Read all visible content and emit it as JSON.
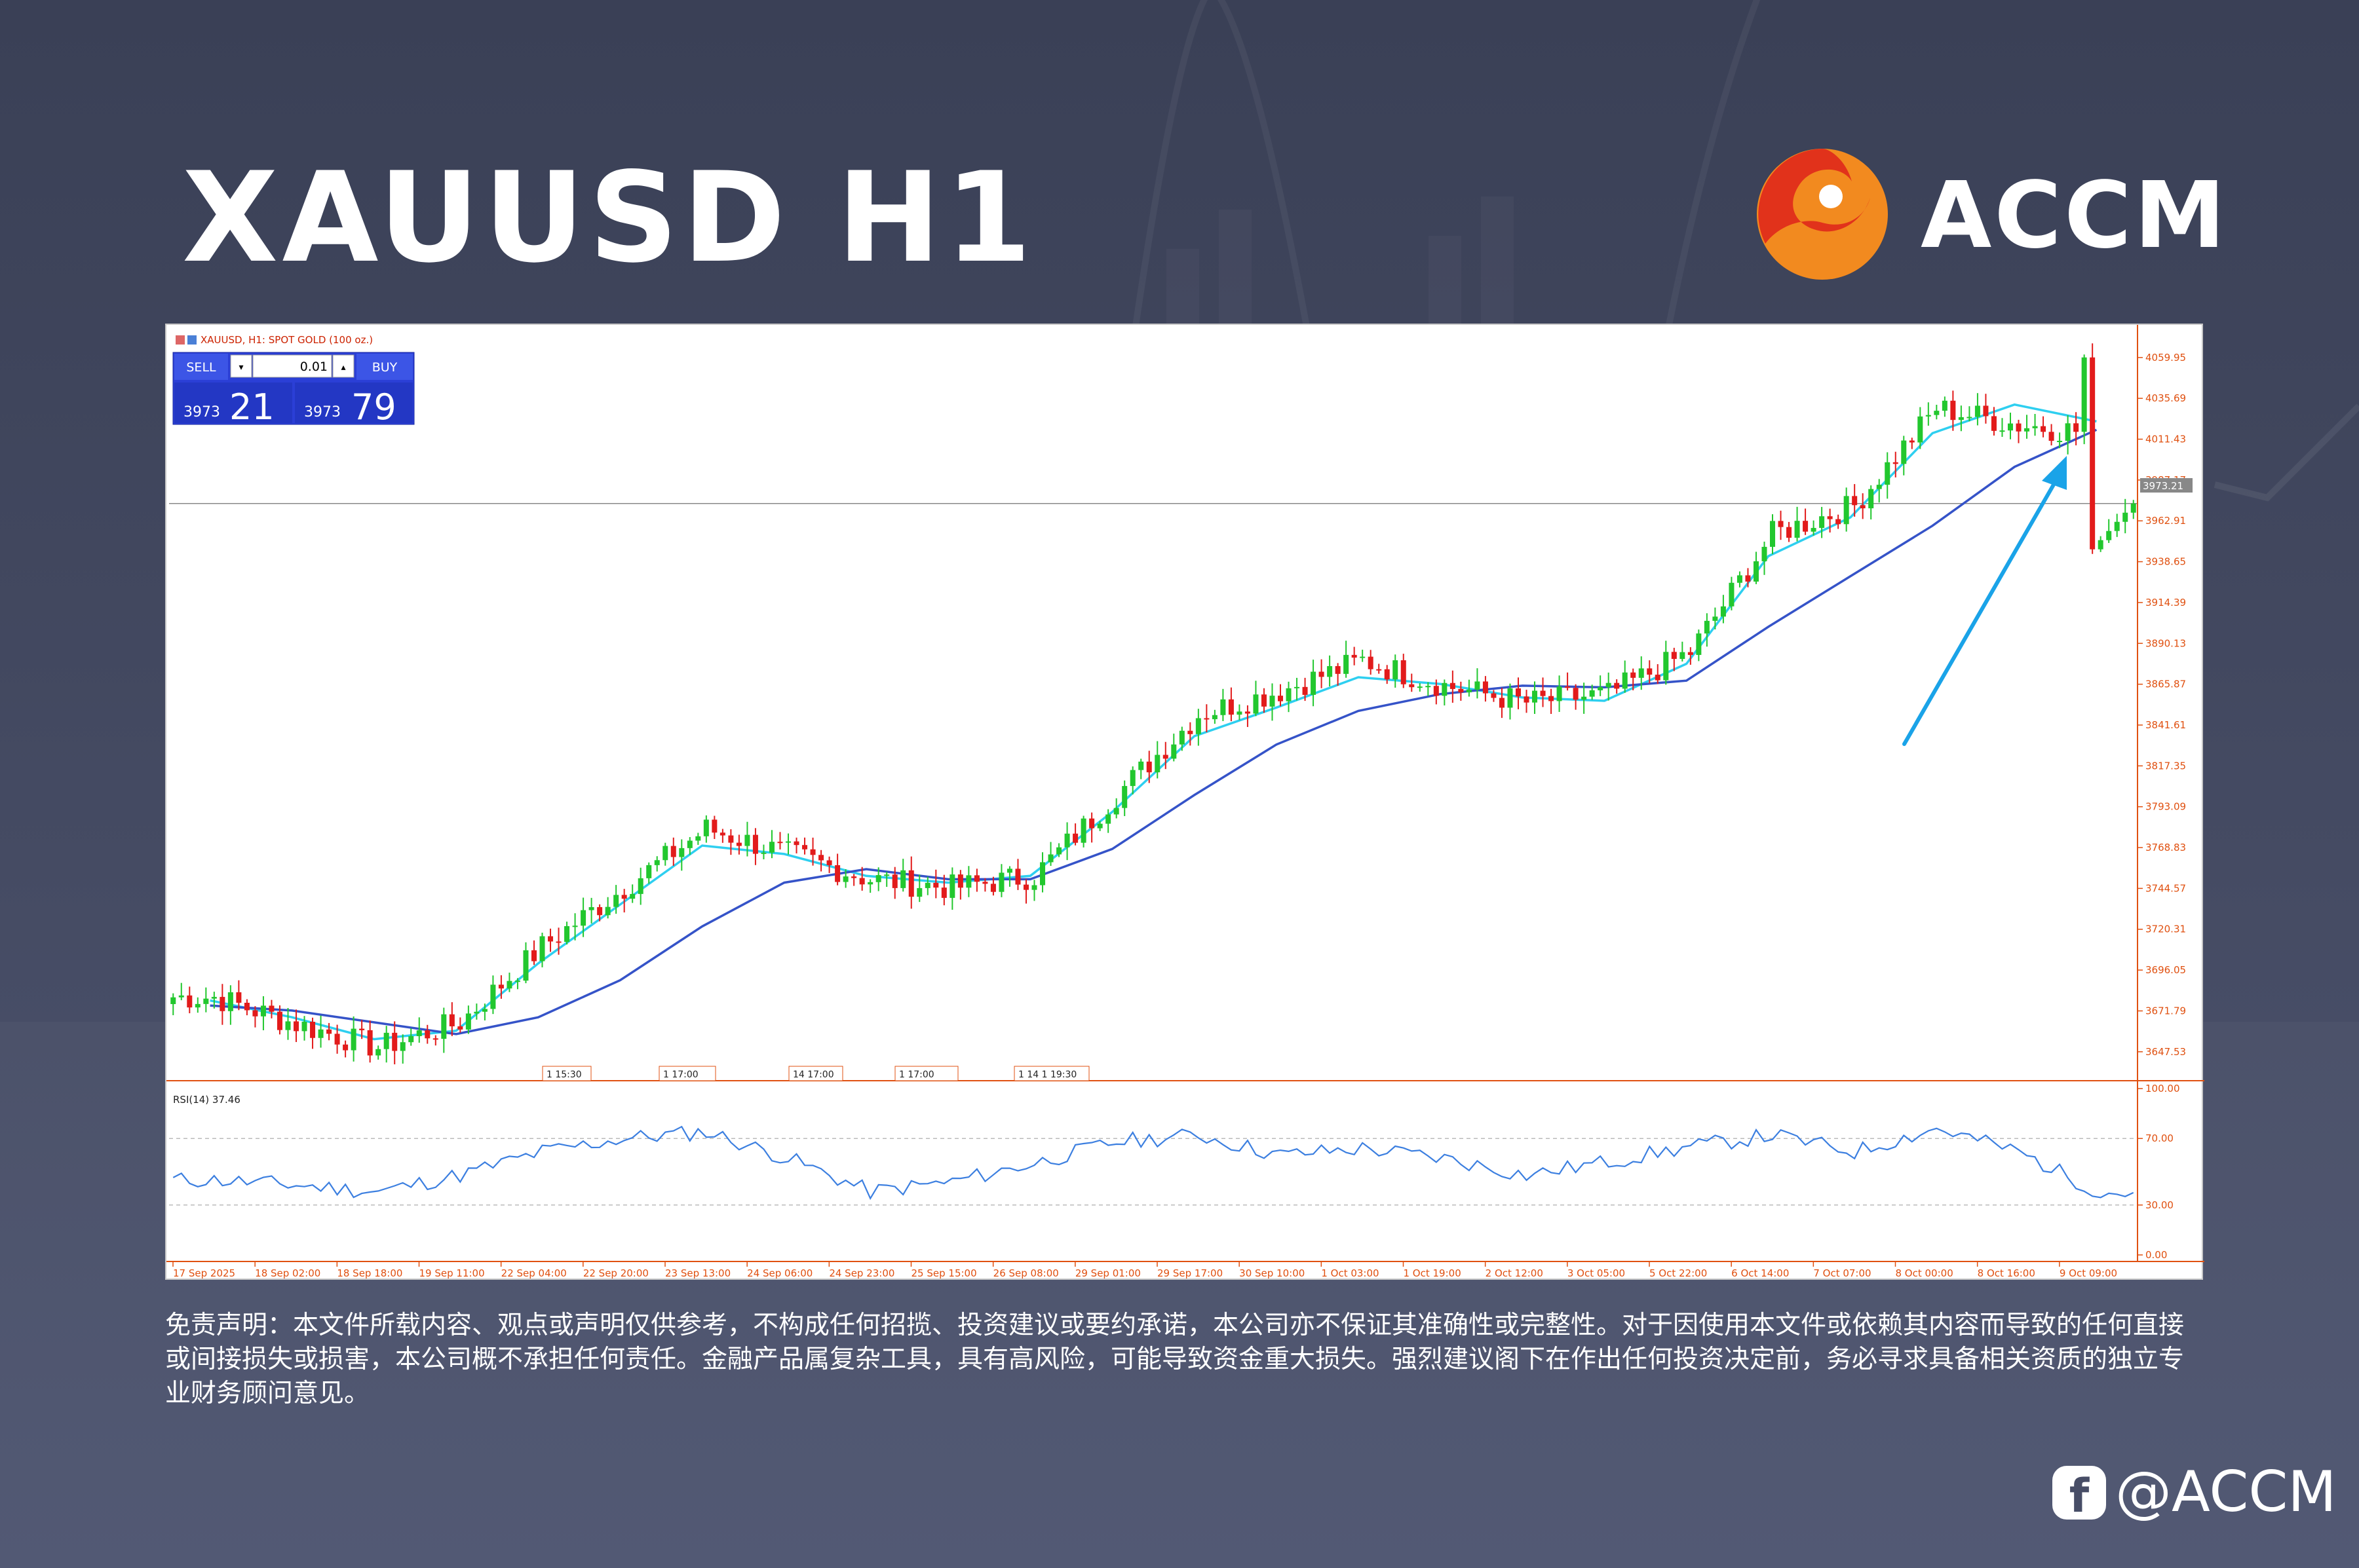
{
  "page": {
    "headline": "XAUUSD H1",
    "brand_name": "ACCM",
    "disclaimer": "免责声明：本文件所载内容、观点或声明仅供参考，不构成任何招揽、投资建议或要约承诺，本公司亦不保证其准确性或完整性。对于因使用本文件或依赖其内容而导致的任何直接或间接损失或损害，本公司概不承担任何责任。金融产品属复杂工具，具有高风险，可能导致资金重大损失。强烈建议阁下在作出任何投资决定前，务必寻求具备相关资质的独立专业财务顾问意见。",
    "social_handle": "@ACCM"
  },
  "terminal": {
    "chart_title": "XAUUSD, H1:  SPOT GOLD (100 oz.)",
    "sell_label": "SELL",
    "buy_label": "BUY",
    "lot_value": "0.01",
    "sell_price_big": "3973",
    "sell_price_small": "21",
    "buy_price_big": "3973",
    "buy_price_small": "79",
    "last_price_label": "3973.21",
    "event_labels": [
      {
        "after": "17 Sep 2025",
        "text": "1 15:30"
      },
      {
        "after": "18 Sep 18:00",
        "text": "1 17:00"
      },
      {
        "after": "22 Sep 20:00",
        "text": "14 17:00"
      },
      {
        "after": "24 Sep 06:00",
        "text": "1 17:00"
      },
      {
        "after": "25 Sep 15:00",
        "text": "1 14 1 19:30"
      }
    ]
  },
  "chart_data": [
    {
      "type": "candlestick",
      "symbol": "XAUUSD",
      "timeframe": "H1",
      "ylim": [
        3635,
        4070
      ],
      "y_ticks": [
        4059.95,
        4035.69,
        4011.43,
        3987.17,
        3962.91,
        3938.65,
        3914.39,
        3890.13,
        3865.87,
        3841.61,
        3817.35,
        3793.09,
        3768.83,
        3744.57,
        3720.31,
        3696.05,
        3671.79,
        3647.53
      ],
      "x_ticks": [
        "17 Sep 2025",
        "18 Sep 02:00",
        "18 Sep 18:00",
        "19 Sep 11:00",
        "22 Sep 04:00",
        "22 Sep 20:00",
        "23 Sep 13:00",
        "24 Sep 06:00",
        "24 Sep 23:00",
        "25 Sep 15:00",
        "26 Sep 08:00",
        "29 Sep 01:00",
        "29 Sep 17:00",
        "30 Sep 10:00",
        "1 Oct 03:00",
        "1 Oct 19:00",
        "2 Oct 12:00",
        "3 Oct 05:00",
        "5 Oct 22:00",
        "6 Oct 14:00",
        "7 Oct 07:00",
        "8 Oct 00:00",
        "8 Oct 16:00",
        "9 Oct 09:00"
      ],
      "close_by_tick": [
        3680,
        3664,
        3650,
        3665,
        3710,
        3745,
        3780,
        3765,
        3750,
        3745,
        3752,
        3800,
        3848,
        3862,
        3880,
        3865,
        3855,
        3860,
        3885,
        3955,
        3972,
        4030,
        4020,
        4015
      ],
      "last_move": {
        "high": 4060,
        "low": 3946,
        "last": 3973.21
      },
      "series": [
        {
          "name": "",
          "kind": "moving-average",
          "color": "#2ecff0",
          "values_by_tick": [
            3678,
            3668,
            3655,
            3660,
            3700,
            3735,
            3770,
            3765,
            3752,
            3748,
            3752,
            3790,
            3835,
            3852,
            3870,
            3866,
            3858,
            3856,
            3878,
            3942,
            3965,
            4015,
            4032,
            4022
          ]
        },
        {
          "name": "",
          "kind": "moving-average",
          "color": "#3553c8",
          "values_by_tick": [
            3675,
            3672,
            3665,
            3658,
            3668,
            3690,
            3722,
            3748,
            3756,
            3750,
            3750,
            3768,
            3800,
            3830,
            3850,
            3860,
            3865,
            3864,
            3868,
            3900,
            3930,
            3960,
            3995,
            4017
          ]
        }
      ],
      "colors": {
        "bull": "#22c72e",
        "bear": "#e21b1b",
        "background": "#ffffff",
        "axis_text": "#e05010"
      },
      "annotation": {
        "type": "arrow",
        "color": "#1aa3e8",
        "direction": "up-right"
      }
    },
    {
      "type": "line",
      "title": "RSI(14) 37.46",
      "ylim": [
        0,
        100
      ],
      "y_ticks": [
        "100.00",
        "70.00",
        "30.00",
        "0.00"
      ],
      "levels": [
        70,
        30
      ],
      "color": "#3c7fe0",
      "values_by_tick": [
        45,
        42,
        38,
        48,
        62,
        70,
        74,
        58,
        38,
        44,
        55,
        68,
        72,
        60,
        64,
        58,
        48,
        56,
        65,
        72,
        62,
        76,
        62,
        37.46
      ]
    }
  ]
}
